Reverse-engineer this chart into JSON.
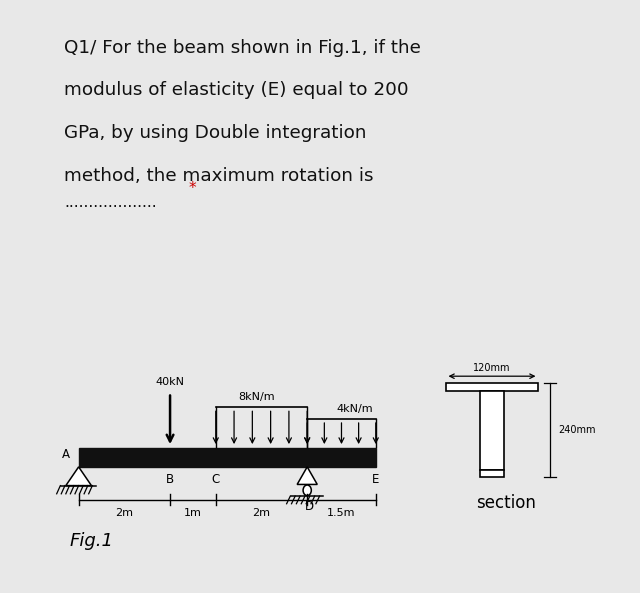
{
  "bg_color": "#e8e8e8",
  "inner_bg": "#ffffff",
  "title_lines": [
    "Q1/ For the beam shown in Fig.1, if the",
    "modulus of elasticity (E) equal to 200",
    "GPa, by using Double integration",
    "method, the maximum rotation is"
  ],
  "dots_text": "...................",
  "star_text": "*",
  "star_color": "#cc0000",
  "beam_color": "#111111",
  "text_color": "#111111",
  "label_A": "A",
  "label_B": "B",
  "label_C": "C",
  "label_D": "D",
  "label_E": "E",
  "label_40kN": "40kN",
  "label_8kNm": "8kN/m",
  "label_4kNm": "4kN/m",
  "label_120mm": "120mm",
  "label_240mm": "240mm",
  "label_fig": "Fig.1",
  "label_section": "section"
}
